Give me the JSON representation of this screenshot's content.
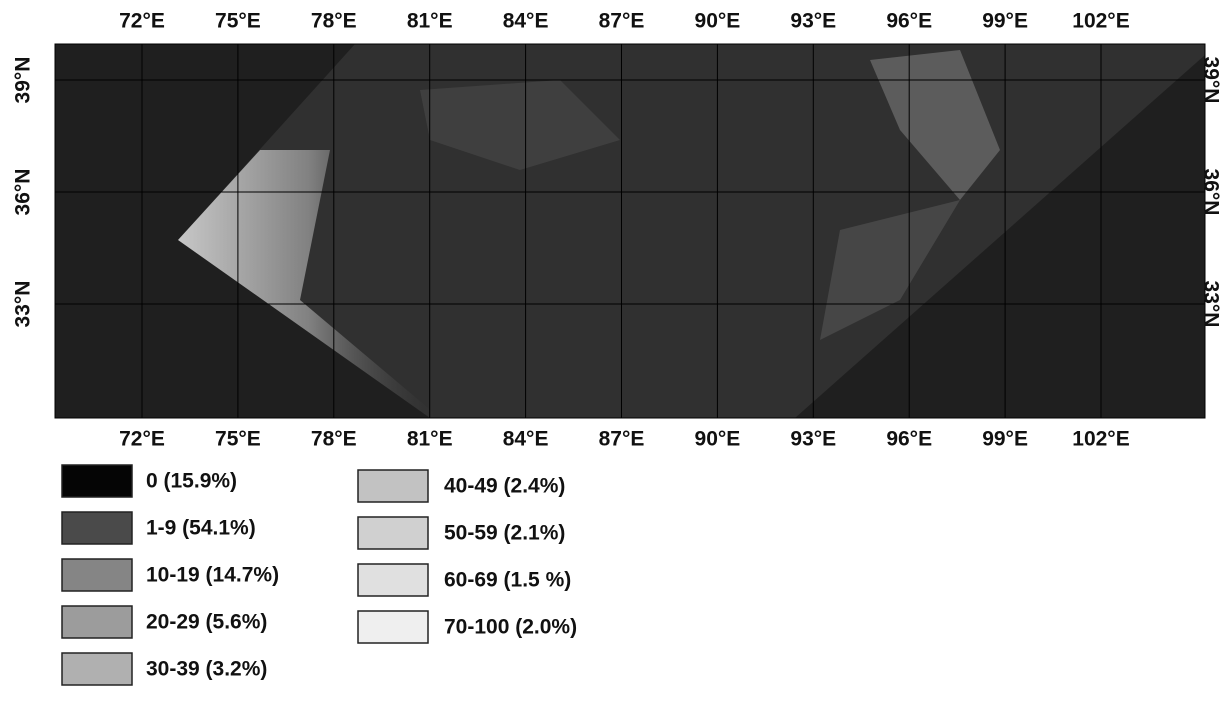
{
  "map": {
    "lon_labels_top": [
      "72°E",
      "75°E",
      "78°E",
      "81°E",
      "84°E",
      "87°E",
      "90°E",
      "93°E",
      "96°E",
      "99°E",
      "102°E"
    ],
    "lon_labels_bottom": [
      "72°E",
      "75°E",
      "78°E",
      "81°E",
      "84°E",
      "87°E",
      "90°E",
      "93°E",
      "96°E",
      "99°E",
      "102°E"
    ],
    "lat_labels_left": [
      "39°N",
      "36°N",
      "33°N"
    ],
    "lat_labels_right": [
      "39°N",
      "36°N",
      "33°N"
    ]
  },
  "legend": {
    "items": [
      {
        "label": "0 (15.9%)",
        "color": "#050505"
      },
      {
        "label": "1-9 (54.1%)",
        "color": "#4a4a4a"
      },
      {
        "label": "10-19 (14.7%)",
        "color": "#858585"
      },
      {
        "label": "20-29 (5.6%)",
        "color": "#9c9c9c"
      },
      {
        "label": "30-39 (3.2%)",
        "color": "#b0b0b0"
      },
      {
        "label": "40-49 (2.4%)",
        "color": "#c2c2c2"
      },
      {
        "label": "50-59 (2.1%)",
        "color": "#d0d0d0"
      },
      {
        "label": "60-69 (1.5 %)",
        "color": "#e0e0e0"
      },
      {
        "label": "70-100 (2.0%)",
        "color": "#efefef"
      }
    ]
  }
}
